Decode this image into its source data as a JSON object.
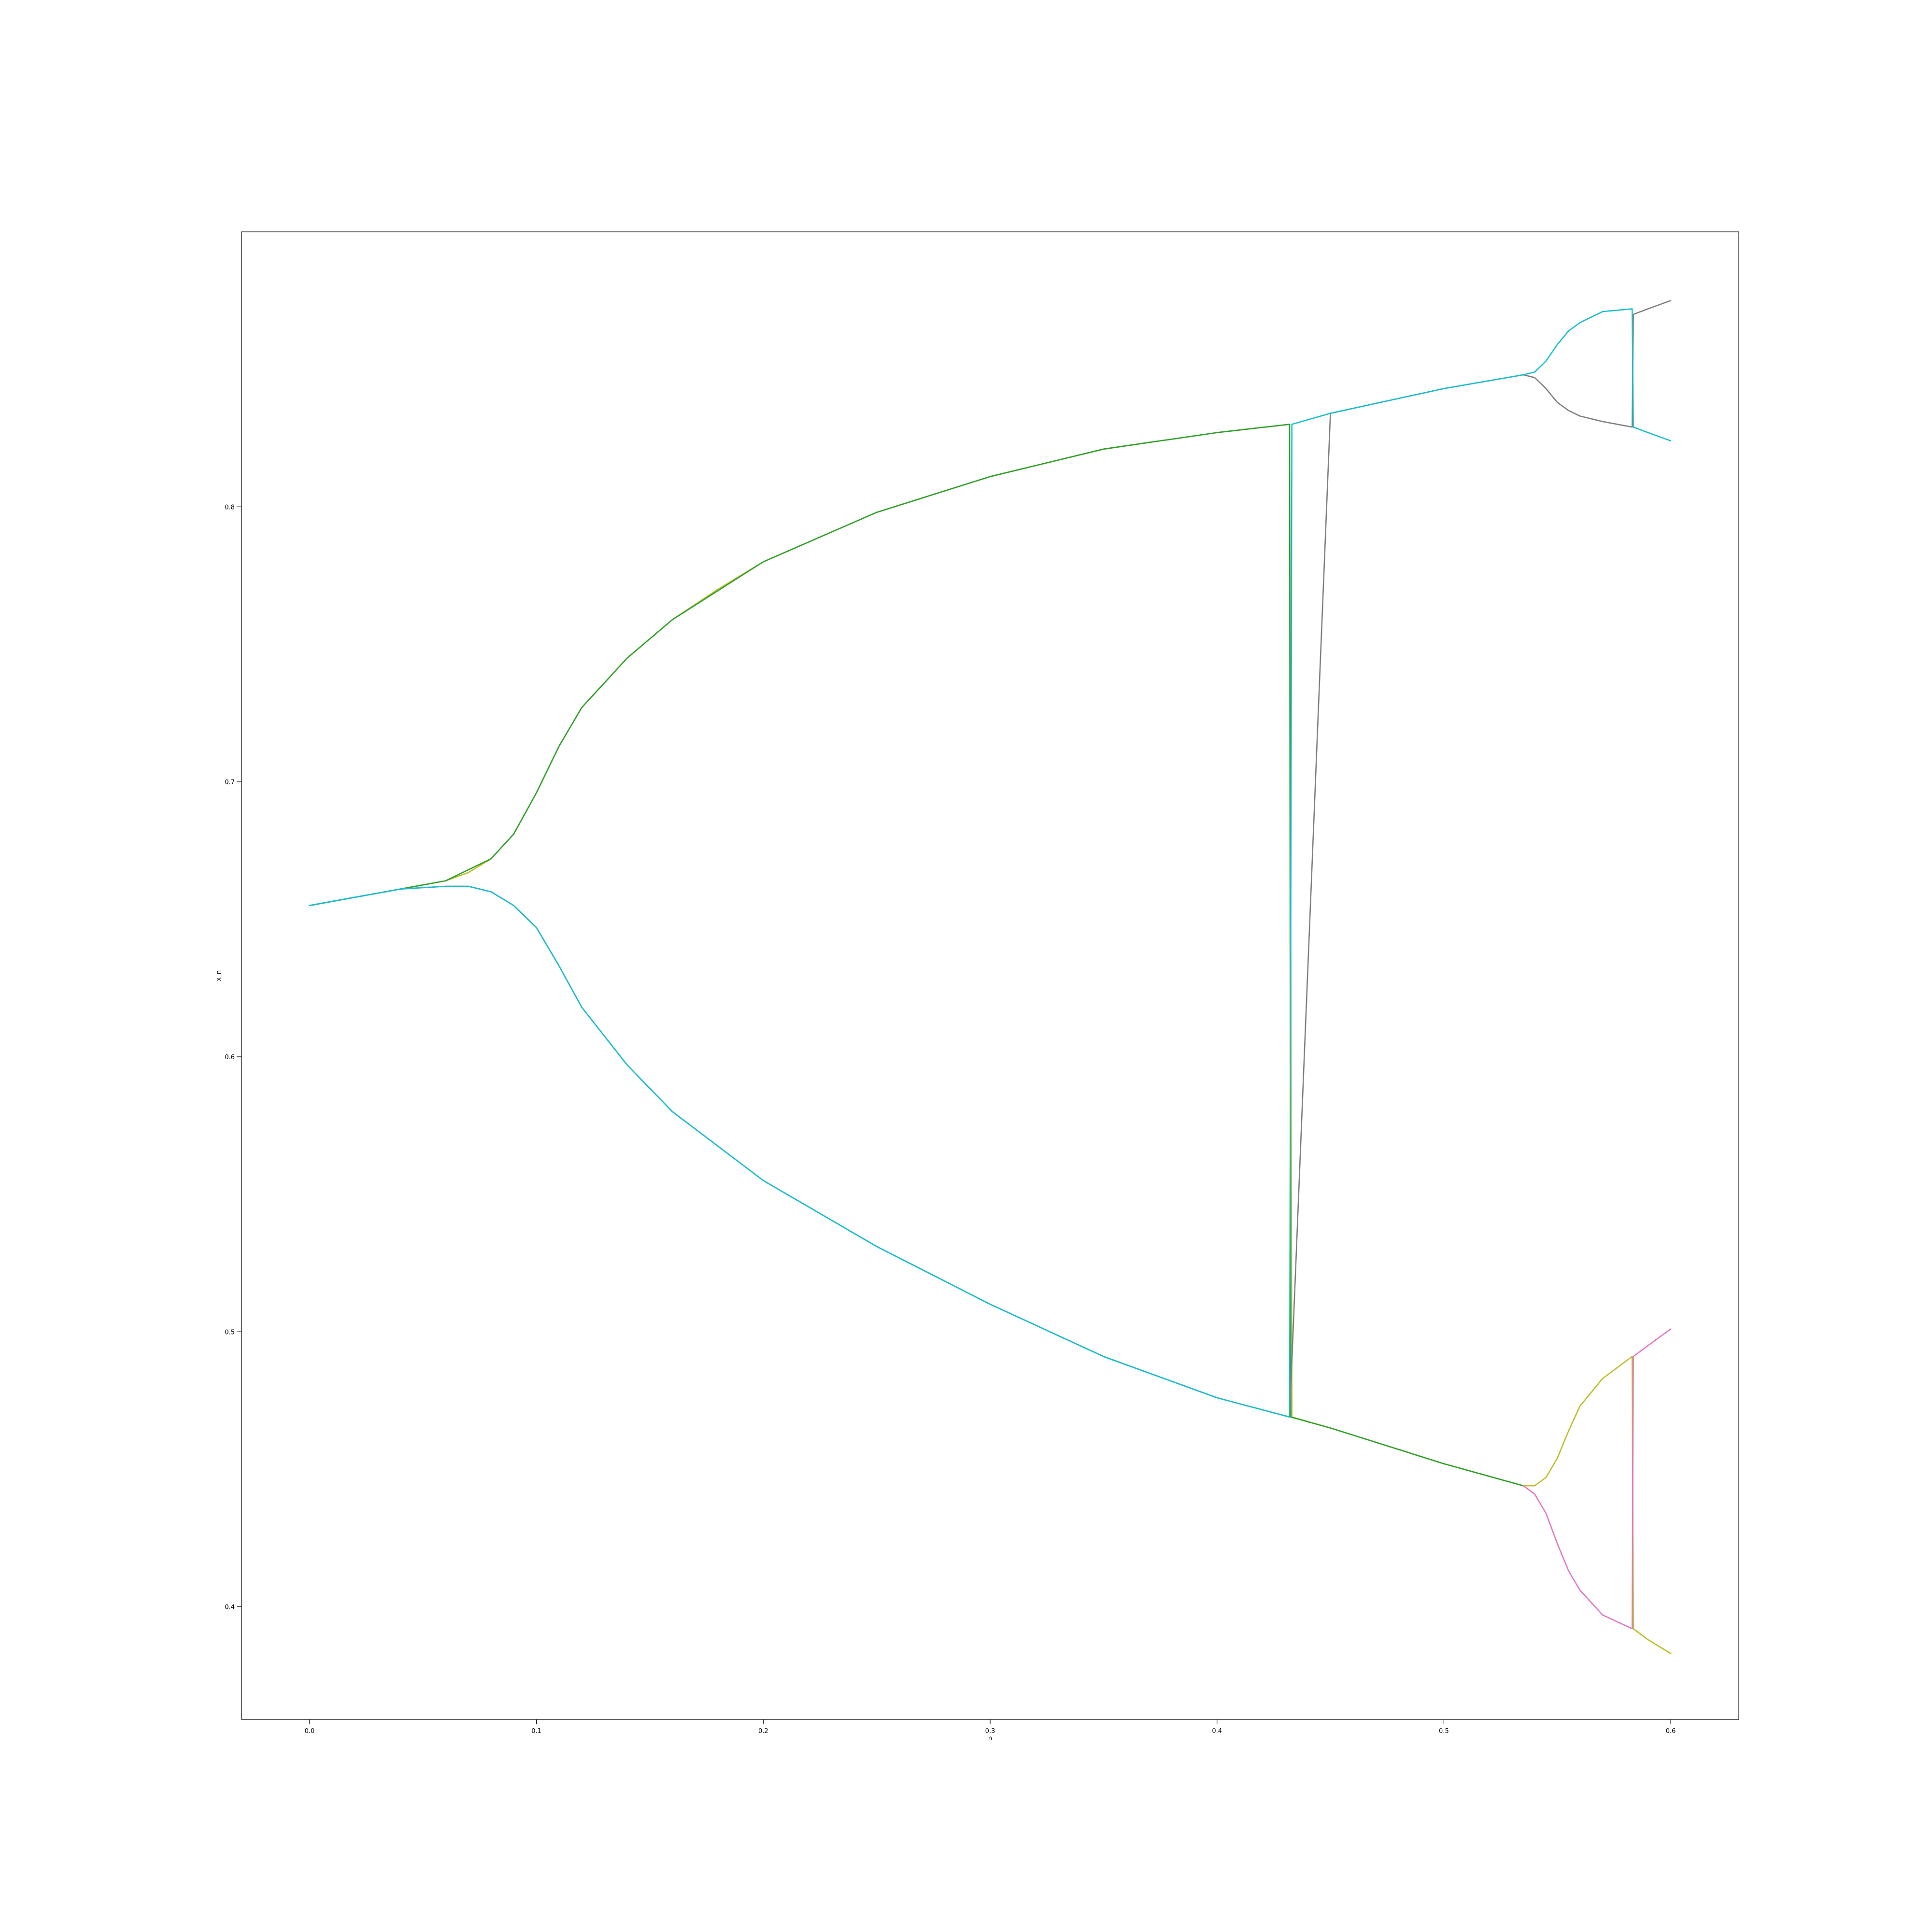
{
  "chart_data": {
    "type": "line",
    "title": "",
    "xlabel": "n",
    "ylabel": "x_n",
    "xlim": [
      -0.03,
      0.63
    ],
    "ylim": [
      0.359,
      0.9
    ],
    "grid": false,
    "legend": "none",
    "x_ticks": [
      {
        "value": 0.0,
        "label": "0.0"
      },
      {
        "value": 0.1,
        "label": "0.1"
      },
      {
        "value": 0.2,
        "label": "0.2"
      },
      {
        "value": 0.3,
        "label": "0.3"
      },
      {
        "value": 0.4,
        "label": "0.4"
      },
      {
        "value": 0.5,
        "label": "0.5"
      },
      {
        "value": 0.6,
        "label": "0.6"
      }
    ],
    "y_ticks": [
      {
        "value": 0.4,
        "label": "0.4"
      },
      {
        "value": 0.5,
        "label": "0.5"
      },
      {
        "value": 0.6,
        "label": "0.6"
      },
      {
        "value": 0.7,
        "label": "0.7"
      },
      {
        "value": 0.8,
        "label": "0.8"
      }
    ],
    "series": [
      {
        "color": "#bcbd22",
        "x": [
          0.0,
          0.02,
          0.04,
          0.06,
          0.07,
          0.08,
          0.09,
          0.1,
          0.11,
          0.12,
          0.14,
          0.16,
          0.18,
          0.2,
          0.25,
          0.3,
          0.35,
          0.4,
          0.432,
          0.433,
          0.45,
          0.5,
          0.535,
          0.54,
          0.545,
          0.55,
          0.555,
          0.56,
          0.57,
          0.583,
          0.5835,
          0.59,
          0.6
        ],
        "y": [
          0.655,
          0.658,
          0.661,
          0.664,
          0.667,
          0.672,
          0.681,
          0.696,
          0.713,
          0.727,
          0.745,
          0.759,
          0.77,
          0.78,
          0.798,
          0.811,
          0.821,
          0.827,
          0.83,
          0.469,
          0.465,
          0.452,
          0.444,
          0.444,
          0.447,
          0.454,
          0.464,
          0.473,
          0.483,
          0.491,
          0.392,
          0.388,
          0.383
        ]
      },
      {
        "color": "#2ca02c",
        "x": [
          0.0,
          0.04,
          0.06,
          0.08,
          0.09,
          0.1,
          0.11,
          0.12,
          0.14,
          0.16,
          0.2,
          0.25,
          0.3,
          0.35,
          0.4,
          0.432,
          0.4325,
          0.45,
          0.5,
          0.535
        ],
        "y": [
          0.655,
          0.661,
          0.664,
          0.672,
          0.681,
          0.696,
          0.713,
          0.727,
          0.745,
          0.759,
          0.78,
          0.798,
          0.811,
          0.821,
          0.827,
          0.83,
          0.469,
          0.465,
          0.452,
          0.444
        ]
      },
      {
        "color": "#7f7f7f",
        "x": [
          0.0,
          0.02,
          0.04,
          0.06,
          0.07,
          0.08,
          0.09,
          0.1,
          0.11,
          0.12,
          0.14,
          0.16,
          0.2,
          0.25,
          0.3,
          0.35,
          0.4,
          0.432,
          0.45,
          0.5,
          0.535,
          0.54,
          0.545,
          0.55,
          0.555,
          0.56,
          0.57,
          0.583,
          0.5835,
          0.59,
          0.6
        ],
        "y": [
          0.655,
          0.658,
          0.661,
          0.662,
          0.662,
          0.66,
          0.655,
          0.647,
          0.633,
          0.618,
          0.597,
          0.58,
          0.555,
          0.531,
          0.51,
          0.491,
          0.476,
          0.469,
          0.834,
          0.843,
          0.848,
          0.847,
          0.843,
          0.838,
          0.835,
          0.833,
          0.831,
          0.829,
          0.87,
          0.872,
          0.875
        ]
      },
      {
        "color": "#e377c2",
        "x": [
          0.535,
          0.54,
          0.545,
          0.55,
          0.555,
          0.56,
          0.57,
          0.583,
          0.5835,
          0.59,
          0.6
        ],
        "y": [
          0.444,
          0.441,
          0.434,
          0.423,
          0.413,
          0.406,
          0.397,
          0.392,
          0.491,
          0.495,
          0.501
        ]
      },
      {
        "color": "#17becf",
        "x": [
          0.0,
          0.02,
          0.04,
          0.06,
          0.07,
          0.08,
          0.09,
          0.1,
          0.11,
          0.12,
          0.14,
          0.16,
          0.2,
          0.25,
          0.3,
          0.35,
          0.4,
          0.432,
          0.433,
          0.45,
          0.5,
          0.535,
          0.54,
          0.545,
          0.55,
          0.555,
          0.56,
          0.57,
          0.583,
          0.5835,
          0.59,
          0.6
        ],
        "y": [
          0.655,
          0.658,
          0.661,
          0.662,
          0.662,
          0.66,
          0.655,
          0.647,
          0.633,
          0.618,
          0.597,
          0.58,
          0.555,
          0.531,
          0.51,
          0.491,
          0.476,
          0.469,
          0.83,
          0.834,
          0.843,
          0.848,
          0.849,
          0.853,
          0.859,
          0.864,
          0.867,
          0.871,
          0.872,
          0.829,
          0.827,
          0.824
        ]
      }
    ]
  }
}
